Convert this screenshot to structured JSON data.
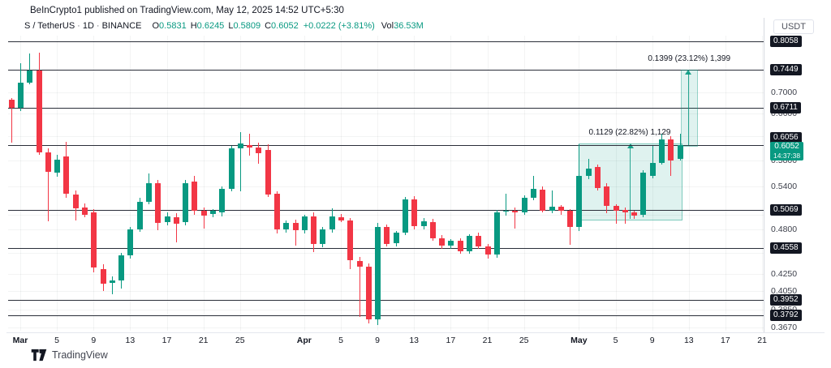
{
  "header": {
    "attribution": "BeInCrypto1 published on TradingView.com, May 12, 2025 14:52 UTC+5:30"
  },
  "legend": {
    "symbol": "S / TetherUS",
    "separator": "·",
    "interval": "1D",
    "exchange": "BINANCE",
    "ohlc": [
      {
        "k": "O",
        "v": "0.5831"
      },
      {
        "k": "H",
        "v": "0.6245"
      },
      {
        "k": "L",
        "v": "0.5809"
      },
      {
        "k": "C",
        "v": "0.6052"
      }
    ],
    "change": "+0.0222 (+3.81%)",
    "volume_label": "Vol",
    "volume_value": "36.53M"
  },
  "colors": {
    "up": "#089981",
    "down": "#f23645",
    "level_line": "#2a2e39",
    "badge_bg": "#131722",
    "last_badge_bg": "#089981",
    "range_fill": "rgba(8,153,129,0.13)"
  },
  "price_axis": {
    "currency": "USDT",
    "level_badges": [
      {
        "price": 0.8058,
        "label": "0.8058"
      },
      {
        "price": 0.7449,
        "label": "0.7449"
      },
      {
        "price": 0.6711,
        "label": "0.6711"
      },
      {
        "price": 0.6056,
        "label": "0.6056",
        "shift": -9
      },
      {
        "price": 0.5069,
        "label": "0.5069"
      },
      {
        "price": 0.4558,
        "label": "0.4558"
      },
      {
        "price": 0.3952,
        "label": "0.3952"
      },
      {
        "price": 0.3792,
        "label": "0.3792"
      }
    ],
    "scale_labels": [
      {
        "price": 0.7,
        "label": "0.7000"
      },
      {
        "price": 0.66,
        "label": "0.6600"
      },
      {
        "price": 0.58,
        "label": "0.5800"
      },
      {
        "price": 0.54,
        "label": "0.5400"
      },
      {
        "price": 0.48,
        "label": "0.4800"
      },
      {
        "price": 0.425,
        "label": "0.4250"
      },
      {
        "price": 0.405,
        "label": "0.4050"
      },
      {
        "price": 0.385,
        "label": "0.3850"
      },
      {
        "price": 0.367,
        "label": "0.3670"
      }
    ],
    "grid_prices": [
      0.7,
      0.66,
      0.62,
      0.58,
      0.54,
      0.5,
      0.48,
      0.45,
      0.425,
      0.405,
      0.385,
      0.367
    ],
    "last": {
      "price": "0.6052",
      "countdown": "14:37:38",
      "value": 0.6052
    }
  },
  "time_axis": {
    "ticks": [
      {
        "label": "Mar",
        "i": 1,
        "major": true
      },
      {
        "label": "5",
        "i": 5
      },
      {
        "label": "9",
        "i": 9
      },
      {
        "label": "13",
        "i": 13
      },
      {
        "label": "17",
        "i": 17
      },
      {
        "label": "21",
        "i": 21
      },
      {
        "label": "25",
        "i": 25
      },
      {
        "label": "Apr",
        "i": 32,
        "major": true
      },
      {
        "label": "5",
        "i": 36
      },
      {
        "label": "9",
        "i": 40
      },
      {
        "label": "13",
        "i": 44
      },
      {
        "label": "17",
        "i": 48
      },
      {
        "label": "21",
        "i": 52
      },
      {
        "label": "25",
        "i": 56
      },
      {
        "label": "May",
        "i": 62,
        "major": true
      },
      {
        "label": "5",
        "i": 66
      },
      {
        "label": "9",
        "i": 70
      },
      {
        "label": "13",
        "i": 74
      },
      {
        "label": "17",
        "i": 78
      },
      {
        "label": "21",
        "i": 82
      }
    ]
  },
  "levels": [
    0.8058,
    0.7449,
    0.6711,
    0.6056,
    0.5069,
    0.4558,
    0.3952,
    0.3792
  ],
  "annotations": {
    "range_box": {
      "label": "0.1129 (22.82%) 1,129",
      "price_from": 0.4948,
      "price_to": 0.6077,
      "i_from": 62,
      "i_to": 73.1
    },
    "projection": {
      "label": "0.1399 (23.12%) 1,399",
      "price_from": 0.6051,
      "price_to": 0.745,
      "i_from": 73.1,
      "i_to": 74.8,
      "arrow_i": 73.9
    }
  },
  "footer": {
    "brand": "TradingView"
  },
  "chart_data": {
    "type": "candlestick",
    "title": "S / TetherUS · 1D · BINANCE",
    "symbol": "S/USDT",
    "interval": "1D",
    "exchange": "BINANCE",
    "scale": "log",
    "ylim": [
      0.367,
      0.81
    ],
    "x_range": [
      "Feb 28",
      "May 12"
    ],
    "candles": [
      {
        "d": "Feb 28",
        "o": 0.686,
        "h": 0.69,
        "l": 0.61,
        "c": 0.671
      },
      {
        "d": "Mar 1",
        "o": 0.671,
        "h": 0.758,
        "l": 0.665,
        "c": 0.719
      },
      {
        "d": "Mar 2",
        "o": 0.719,
        "h": 0.779,
        "l": 0.715,
        "c": 0.744
      },
      {
        "d": "Mar 3",
        "o": 0.744,
        "h": 0.781,
        "l": 0.589,
        "c": 0.593
      },
      {
        "d": "Mar 4",
        "o": 0.593,
        "h": 0.6,
        "l": 0.491,
        "c": 0.563
      },
      {
        "d": "Mar 5",
        "o": 0.561,
        "h": 0.59,
        "l": 0.555,
        "c": 0.582
      },
      {
        "d": "Mar 6",
        "o": 0.587,
        "h": 0.611,
        "l": 0.524,
        "c": 0.53
      },
      {
        "d": "Mar 7",
        "o": 0.529,
        "h": 0.535,
        "l": 0.492,
        "c": 0.509
      },
      {
        "d": "Mar 8",
        "o": 0.51,
        "h": 0.516,
        "l": 0.496,
        "c": 0.5
      },
      {
        "d": "Mar 9",
        "o": 0.503,
        "h": 0.508,
        "l": 0.427,
        "c": 0.432
      },
      {
        "d": "Mar 10",
        "o": 0.431,
        "h": 0.436,
        "l": 0.405,
        "c": 0.414
      },
      {
        "d": "Mar 11",
        "o": 0.414,
        "h": 0.422,
        "l": 0.402,
        "c": 0.417
      },
      {
        "d": "Mar 12",
        "o": 0.417,
        "h": 0.45,
        "l": 0.408,
        "c": 0.447
      },
      {
        "d": "Mar 13",
        "o": 0.447,
        "h": 0.483,
        "l": 0.443,
        "c": 0.48
      },
      {
        "d": "Mar 14",
        "o": 0.48,
        "h": 0.524,
        "l": 0.477,
        "c": 0.518
      },
      {
        "d": "Mar 15",
        "o": 0.518,
        "h": 0.56,
        "l": 0.515,
        "c": 0.545
      },
      {
        "d": "Mar 16",
        "o": 0.545,
        "h": 0.55,
        "l": 0.479,
        "c": 0.489
      },
      {
        "d": "Mar 17",
        "o": 0.49,
        "h": 0.503,
        "l": 0.485,
        "c": 0.498
      },
      {
        "d": "Mar 18",
        "o": 0.497,
        "h": 0.502,
        "l": 0.463,
        "c": 0.488
      },
      {
        "d": "Mar 19",
        "o": 0.49,
        "h": 0.55,
        "l": 0.486,
        "c": 0.545
      },
      {
        "d": "Mar 20",
        "o": 0.548,
        "h": 0.557,
        "l": 0.5,
        "c": 0.506
      },
      {
        "d": "Mar 21",
        "o": 0.506,
        "h": 0.51,
        "l": 0.481,
        "c": 0.499
      },
      {
        "d": "Mar 22",
        "o": 0.501,
        "h": 0.508,
        "l": 0.496,
        "c": 0.505
      },
      {
        "d": "Mar 23",
        "o": 0.503,
        "h": 0.54,
        "l": 0.498,
        "c": 0.537
      },
      {
        "d": "Mar 24",
        "o": 0.537,
        "h": 0.604,
        "l": 0.533,
        "c": 0.6
      },
      {
        "d": "Mar 25",
        "o": 0.6,
        "h": 0.627,
        "l": 0.533,
        "c": 0.608
      },
      {
        "d": "Mar 26",
        "o": 0.606,
        "h": 0.625,
        "l": 0.588,
        "c": 0.601
      },
      {
        "d": "Mar 27",
        "o": 0.601,
        "h": 0.61,
        "l": 0.575,
        "c": 0.592
      },
      {
        "d": "Mar 28",
        "o": 0.598,
        "h": 0.607,
        "l": 0.525,
        "c": 0.528
      },
      {
        "d": "Mar 29",
        "o": 0.53,
        "h": 0.533,
        "l": 0.475,
        "c": 0.48
      },
      {
        "d": "Mar 30",
        "o": 0.48,
        "h": 0.492,
        "l": 0.476,
        "c": 0.489
      },
      {
        "d": "Mar 31",
        "o": 0.489,
        "h": 0.493,
        "l": 0.459,
        "c": 0.479
      },
      {
        "d": "Apr 1",
        "o": 0.479,
        "h": 0.5,
        "l": 0.475,
        "c": 0.498
      },
      {
        "d": "Apr 2",
        "o": 0.498,
        "h": 0.503,
        "l": 0.451,
        "c": 0.461
      },
      {
        "d": "Apr 3",
        "o": 0.461,
        "h": 0.483,
        "l": 0.457,
        "c": 0.48
      },
      {
        "d": "Apr 4",
        "o": 0.48,
        "h": 0.509,
        "l": 0.476,
        "c": 0.498
      },
      {
        "d": "Apr 5",
        "o": 0.497,
        "h": 0.501,
        "l": 0.49,
        "c": 0.492
      },
      {
        "d": "Apr 6",
        "o": 0.492,
        "h": 0.495,
        "l": 0.43,
        "c": 0.441
      },
      {
        "d": "Apr 7",
        "o": 0.44,
        "h": 0.445,
        "l": 0.377,
        "c": 0.433
      },
      {
        "d": "Apr 8",
        "o": 0.433,
        "h": 0.437,
        "l": 0.371,
        "c": 0.375
      },
      {
        "d": "Apr 9",
        "o": 0.375,
        "h": 0.489,
        "l": 0.369,
        "c": 0.483
      },
      {
        "d": "Apr 10",
        "o": 0.483,
        "h": 0.487,
        "l": 0.458,
        "c": 0.461
      },
      {
        "d": "Apr 11",
        "o": 0.462,
        "h": 0.478,
        "l": 0.458,
        "c": 0.476
      },
      {
        "d": "Apr 12",
        "o": 0.476,
        "h": 0.525,
        "l": 0.473,
        "c": 0.521
      },
      {
        "d": "Apr 13",
        "o": 0.521,
        "h": 0.526,
        "l": 0.48,
        "c": 0.484
      },
      {
        "d": "Apr 14",
        "o": 0.484,
        "h": 0.495,
        "l": 0.48,
        "c": 0.491
      },
      {
        "d": "Apr 15",
        "o": 0.49,
        "h": 0.494,
        "l": 0.465,
        "c": 0.468
      },
      {
        "d": "Apr 16",
        "o": 0.469,
        "h": 0.473,
        "l": 0.455,
        "c": 0.459
      },
      {
        "d": "Apr 17",
        "o": 0.459,
        "h": 0.468,
        "l": 0.455,
        "c": 0.465
      },
      {
        "d": "Apr 18",
        "o": 0.465,
        "h": 0.469,
        "l": 0.449,
        "c": 0.452
      },
      {
        "d": "Apr 19",
        "o": 0.452,
        "h": 0.474,
        "l": 0.449,
        "c": 0.472
      },
      {
        "d": "Apr 20",
        "o": 0.472,
        "h": 0.476,
        "l": 0.455,
        "c": 0.458
      },
      {
        "d": "Apr 21",
        "o": 0.458,
        "h": 0.461,
        "l": 0.443,
        "c": 0.448
      },
      {
        "d": "Apr 22",
        "o": 0.448,
        "h": 0.507,
        "l": 0.444,
        "c": 0.503
      },
      {
        "d": "Apr 23",
        "o": 0.504,
        "h": 0.53,
        "l": 0.499,
        "c": 0.506
      },
      {
        "d": "Apr 24",
        "o": 0.506,
        "h": 0.51,
        "l": 0.481,
        "c": 0.503
      },
      {
        "d": "Apr 25",
        "o": 0.503,
        "h": 0.528,
        "l": 0.5,
        "c": 0.524
      },
      {
        "d": "Apr 26",
        "o": 0.524,
        "h": 0.557,
        "l": 0.52,
        "c": 0.537
      },
      {
        "d": "Apr 27",
        "o": 0.536,
        "h": 0.54,
        "l": 0.503,
        "c": 0.505
      },
      {
        "d": "Apr 28",
        "o": 0.505,
        "h": 0.535,
        "l": 0.502,
        "c": 0.511
      },
      {
        "d": "Apr 29",
        "o": 0.511,
        "h": 0.514,
        "l": 0.5,
        "c": 0.505
      },
      {
        "d": "Apr 30",
        "o": 0.505,
        "h": 0.508,
        "l": 0.46,
        "c": 0.483
      },
      {
        "d": "May 1",
        "o": 0.483,
        "h": 0.607,
        "l": 0.478,
        "c": 0.556
      },
      {
        "d": "May 2",
        "o": 0.556,
        "h": 0.583,
        "l": 0.552,
        "c": 0.568
      },
      {
        "d": "May 3",
        "o": 0.57,
        "h": 0.574,
        "l": 0.535,
        "c": 0.538
      },
      {
        "d": "May 4",
        "o": 0.54,
        "h": 0.545,
        "l": 0.502,
        "c": 0.512
      },
      {
        "d": "May 5",
        "o": 0.512,
        "h": 0.515,
        "l": 0.488,
        "c": 0.505
      },
      {
        "d": "May 6",
        "o": 0.507,
        "h": 0.51,
        "l": 0.488,
        "c": 0.503
      },
      {
        "d": "May 7",
        "o": 0.503,
        "h": 0.506,
        "l": 0.494,
        "c": 0.499
      },
      {
        "d": "May 8",
        "o": 0.5,
        "h": 0.565,
        "l": 0.496,
        "c": 0.562
      },
      {
        "d": "May 9",
        "o": 0.556,
        "h": 0.604,
        "l": 0.552,
        "c": 0.577
      },
      {
        "d": "May 10",
        "o": 0.577,
        "h": 0.625,
        "l": 0.574,
        "c": 0.615
      },
      {
        "d": "May 11",
        "o": 0.615,
        "h": 0.621,
        "l": 0.556,
        "c": 0.581
      },
      {
        "d": "May 12",
        "o": 0.5831,
        "h": 0.6245,
        "l": 0.5809,
        "c": 0.6052
      }
    ]
  }
}
